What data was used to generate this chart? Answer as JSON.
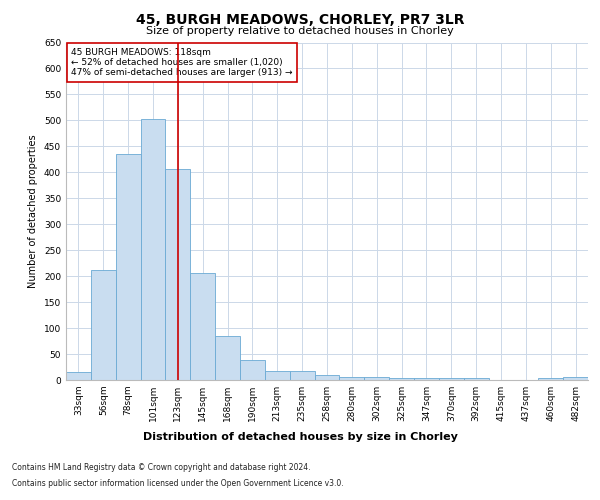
{
  "title": "45, BURGH MEADOWS, CHORLEY, PR7 3LR",
  "subtitle": "Size of property relative to detached houses in Chorley",
  "xlabel": "Distribution of detached houses by size in Chorley",
  "ylabel": "Number of detached properties",
  "footnote1": "Contains HM Land Registry data © Crown copyright and database right 2024.",
  "footnote2": "Contains public sector information licensed under the Open Government Licence v3.0.",
  "categories": [
    "33sqm",
    "56sqm",
    "78sqm",
    "101sqm",
    "123sqm",
    "145sqm",
    "168sqm",
    "190sqm",
    "213sqm",
    "235sqm",
    "258sqm",
    "280sqm",
    "302sqm",
    "325sqm",
    "347sqm",
    "370sqm",
    "392sqm",
    "415sqm",
    "437sqm",
    "460sqm",
    "482sqm"
  ],
  "values": [
    15,
    212,
    436,
    502,
    407,
    207,
    85,
    38,
    18,
    18,
    10,
    5,
    5,
    3,
    3,
    3,
    3,
    0,
    0,
    3,
    5
  ],
  "bar_color": "#c9ddf0",
  "bar_edge_color": "#6aaad4",
  "vline_x_index": 4,
  "vline_color": "#cc0000",
  "ylim": [
    0,
    650
  ],
  "yticks": [
    0,
    50,
    100,
    150,
    200,
    250,
    300,
    350,
    400,
    450,
    500,
    550,
    600,
    650
  ],
  "annotation_title": "45 BURGH MEADOWS: 118sqm",
  "annotation_line1": "← 52% of detached houses are smaller (1,020)",
  "annotation_line2": "47% of semi-detached houses are larger (913) →",
  "annotation_box_color": "#cc0000",
  "bg_color": "#ffffff",
  "grid_color": "#ccd8e8",
  "title_fontsize": 10,
  "subtitle_fontsize": 8,
  "ylabel_fontsize": 7,
  "xlabel_fontsize": 8,
  "tick_fontsize": 6.5,
  "annotation_fontsize": 6.5,
  "footnote_fontsize": 5.5
}
